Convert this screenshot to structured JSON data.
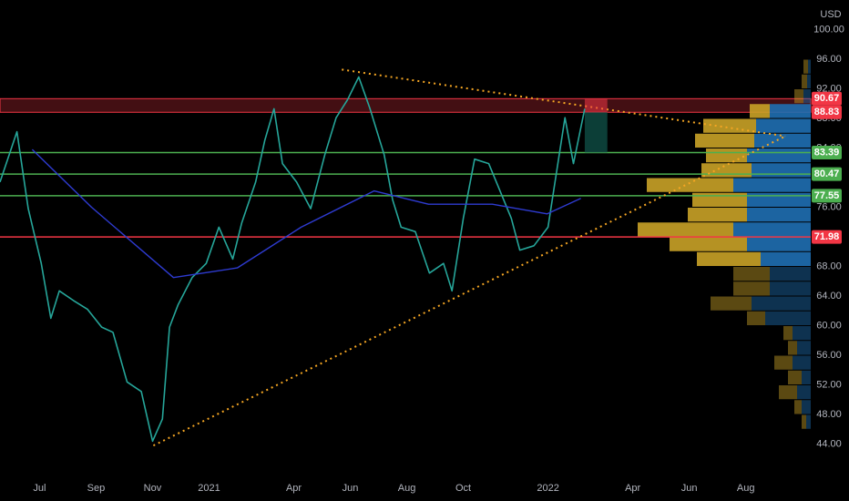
{
  "chart_data": {
    "type": "line",
    "currency": "USD",
    "xlim": [
      -1.4,
      27.3
    ],
    "xticks": [
      {
        "value": 0,
        "label": "Jul"
      },
      {
        "value": 2,
        "label": "Sep"
      },
      {
        "value": 4,
        "label": "Nov"
      },
      {
        "value": 6,
        "label": "2021"
      },
      {
        "value": 9,
        "label": "Apr"
      },
      {
        "value": 11,
        "label": "Jun"
      },
      {
        "value": 13,
        "label": "Aug"
      },
      {
        "value": 15,
        "label": "Oct"
      },
      {
        "value": 18,
        "label": "2022"
      },
      {
        "value": 21,
        "label": "Apr"
      },
      {
        "value": 23,
        "label": "Jun"
      },
      {
        "value": 25,
        "label": "Aug"
      }
    ],
    "ylim": [
      40,
      104
    ],
    "yticks": [
      {
        "value": 44,
        "label": "44.00"
      },
      {
        "value": 48,
        "label": "48.00"
      },
      {
        "value": 52,
        "label": "52.00"
      },
      {
        "value": 56,
        "label": "56.00"
      },
      {
        "value": 60,
        "label": "60.00"
      },
      {
        "value": 64,
        "label": "64.00"
      },
      {
        "value": 68,
        "label": "68.00"
      },
      {
        "value": 72,
        "label": "72.00"
      },
      {
        "value": 76,
        "label": "76.00"
      },
      {
        "value": 80,
        "label": "80.00"
      },
      {
        "value": 84,
        "label": "84.00"
      },
      {
        "value": 88,
        "label": "88.00"
      },
      {
        "value": 92,
        "label": "92.00"
      },
      {
        "value": 96,
        "label": "96.00"
      },
      {
        "value": 100,
        "label": "100.00"
      }
    ],
    "series": [
      {
        "name": "Price",
        "color": "#26a69a",
        "x": [
          -1.4,
          -0.8,
          -0.4,
          0.06,
          0.4,
          0.7,
          1.2,
          1.7,
          2.2,
          2.6,
          3.1,
          3.6,
          4.0,
          4.35,
          4.6,
          4.9,
          5.4,
          5.9,
          6.35,
          6.84,
          7.16,
          7.65,
          7.97,
          8.3,
          8.6,
          9.1,
          9.6,
          10.1,
          10.5,
          10.9,
          11.3,
          11.7,
          12.2,
          12.5,
          12.8,
          13.3,
          13.8,
          14.3,
          14.6,
          15.0,
          15.4,
          15.9,
          16.3,
          16.7,
          17.0,
          17.5,
          18.0,
          18.3,
          18.6,
          18.9,
          19.1,
          19.3
        ],
        "values": [
          79.4,
          86.2,
          75.8,
          68.4,
          61,
          64.7,
          63.4,
          62.2,
          59.8,
          59.1,
          52.4,
          51.1,
          44.4,
          47.4,
          59.8,
          62.8,
          66.5,
          68.4,
          73.3,
          69,
          73.9,
          79.4,
          85,
          89.3,
          81.9,
          79.4,
          75.8,
          83.1,
          88.1,
          90.5,
          93.6,
          89.3,
          83.1,
          77,
          73.3,
          72.7,
          67.1,
          68.4,
          64.7,
          74.5,
          82.5,
          81.9,
          78.2,
          74.5,
          70.2,
          70.8,
          73.3,
          80.7,
          88.1,
          81.9,
          85.6,
          89.3
        ]
      },
      {
        "name": "Moving Average",
        "color": "#2e3bd1",
        "x": [
          -0.26,
          1.84,
          4.74,
          7,
          9.26,
          11.84,
          13.77,
          16.03,
          17.97,
          19.16
        ],
        "values": [
          83.8,
          76,
          66.5,
          67.8,
          73.3,
          78.2,
          76.4,
          76.4,
          75.1,
          77.2
        ]
      }
    ],
    "resistance_zone": {
      "top": 90.67,
      "bottom": 88.83,
      "color": "#f23645"
    },
    "levels": [
      {
        "value": 83.39,
        "color": "#4caf50"
      },
      {
        "value": 80.47,
        "color": "#4caf50"
      },
      {
        "value": 77.55,
        "color": "#4caf50"
      },
      {
        "value": 71.98,
        "color": "#f23645"
      }
    ],
    "trendlines": [
      {
        "x": [
          10.7,
          26.4
        ],
        "y": [
          94.6,
          85.6
        ],
        "color": "#f5a623"
      },
      {
        "x": [
          4.03,
          26.4
        ],
        "y": [
          43.8,
          85.6
        ],
        "color": "#f5a623"
      }
    ],
    "position": {
      "x": [
        19.3,
        20.1
      ],
      "entry": 88.83,
      "stop": 90.67,
      "target": 83.39
    },
    "volume_profile": {
      "bins": [
        46,
        48,
        50,
        52,
        54,
        56,
        58,
        60,
        62,
        64,
        66,
        68,
        70,
        72,
        74,
        76,
        78,
        80,
        82,
        84,
        86,
        88,
        90,
        92,
        94,
        96
      ],
      "up": [
        5,
        8,
        20,
        15,
        20,
        10,
        10,
        20,
        45,
        40,
        40,
        70,
        85,
        105,
        65,
        60,
        95,
        55,
        45,
        65,
        58,
        22,
        10,
        6,
        5
      ],
      "down": [
        5,
        10,
        15,
        10,
        20,
        15,
        20,
        50,
        65,
        45,
        45,
        55,
        70,
        85,
        70,
        70,
        85,
        65,
        70,
        62,
        60,
        45,
        8,
        4,
        3
      ],
      "up_color": "#c9a227",
      "down_color": "#1f6fb2",
      "value_area": [
        68,
        88
      ]
    }
  }
}
